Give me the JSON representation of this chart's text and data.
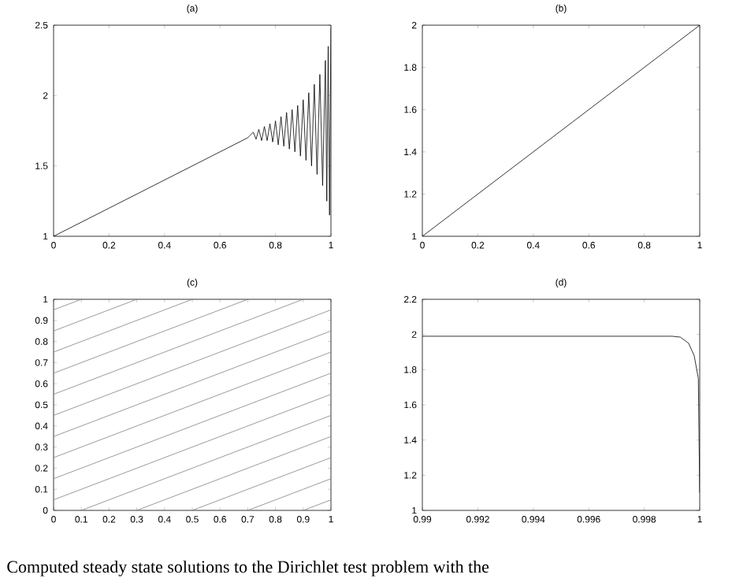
{
  "chart_data": [
    {
      "type": "line",
      "title": "(a)",
      "xlim": [
        0,
        1
      ],
      "ylim": [
        1,
        2.5
      ],
      "xticks": [
        0,
        0.2,
        0.4,
        0.6,
        0.8,
        1
      ],
      "yticks": [
        1,
        1.5,
        2,
        2.5
      ],
      "series": [
        {
          "color": "#000000",
          "x": [
            0,
            0.5,
            0.7,
            0.72,
            0.73,
            0.74,
            0.75,
            0.76,
            0.77,
            0.78,
            0.79,
            0.8,
            0.81,
            0.82,
            0.83,
            0.84,
            0.85,
            0.86,
            0.87,
            0.88,
            0.89,
            0.9,
            0.91,
            0.92,
            0.93,
            0.94,
            0.95,
            0.96,
            0.97,
            0.98,
            0.985,
            0.99,
            0.995,
            1
          ],
          "values": [
            1,
            1.5,
            1.7,
            1.74,
            1.69,
            1.76,
            1.68,
            1.78,
            1.68,
            1.8,
            1.67,
            1.82,
            1.65,
            1.85,
            1.64,
            1.88,
            1.62,
            1.9,
            1.6,
            1.93,
            1.57,
            1.97,
            1.54,
            2.02,
            1.5,
            2.08,
            1.44,
            2.15,
            1.36,
            2.25,
            1.25,
            2.35,
            1.15,
            2.48
          ]
        }
      ]
    },
    {
      "type": "line",
      "title": "(b)",
      "xlim": [
        0,
        1
      ],
      "ylim": [
        1,
        2
      ],
      "xticks": [
        0,
        0.2,
        0.4,
        0.6,
        0.8,
        1
      ],
      "yticks": [
        1,
        1.2,
        1.4,
        1.6,
        1.8,
        2
      ],
      "series": [
        {
          "color": "#000000",
          "x": [
            0,
            1
          ],
          "values": [
            1,
            2
          ]
        }
      ]
    },
    {
      "type": "line",
      "title": "(c)",
      "xlim": [
        0,
        1
      ],
      "ylim": [
        0,
        1
      ],
      "xticks": [
        0,
        0.1,
        0.2,
        0.3,
        0.4,
        0.5,
        0.6,
        0.7,
        0.8,
        0.9,
        1
      ],
      "yticks": [
        0,
        0.1,
        0.2,
        0.3,
        0.4,
        0.5,
        0.6,
        0.7,
        0.8,
        0.9,
        1
      ],
      "series": [
        {
          "color": "#808080",
          "x": [
            0.9,
            1
          ],
          "values": [
            0,
            0.05
          ]
        },
        {
          "color": "#808080",
          "x": [
            0.7,
            1
          ],
          "values": [
            0,
            0.15
          ]
        },
        {
          "color": "#808080",
          "x": [
            0.5,
            1
          ],
          "values": [
            0,
            0.25
          ]
        },
        {
          "color": "#808080",
          "x": [
            0.3,
            1
          ],
          "values": [
            0,
            0.35
          ]
        },
        {
          "color": "#808080",
          "x": [
            0.1,
            1
          ],
          "values": [
            0,
            0.45
          ]
        },
        {
          "color": "#808080",
          "x": [
            0,
            1
          ],
          "values": [
            0.05,
            0.55
          ]
        },
        {
          "color": "#808080",
          "x": [
            0,
            1
          ],
          "values": [
            0.15,
            0.65
          ]
        },
        {
          "color": "#808080",
          "x": [
            0,
            1
          ],
          "values": [
            0.25,
            0.75
          ]
        },
        {
          "color": "#808080",
          "x": [
            0,
            1
          ],
          "values": [
            0.35,
            0.85
          ]
        },
        {
          "color": "#808080",
          "x": [
            0,
            1
          ],
          "values": [
            0.45,
            0.95
          ]
        },
        {
          "color": "#808080",
          "x": [
            0,
            0.9
          ],
          "values": [
            0.55,
            1
          ]
        },
        {
          "color": "#808080",
          "x": [
            0,
            0.7
          ],
          "values": [
            0.65,
            1
          ]
        },
        {
          "color": "#808080",
          "x": [
            0,
            0.5
          ],
          "values": [
            0.75,
            1
          ]
        },
        {
          "color": "#808080",
          "x": [
            0,
            0.3
          ],
          "values": [
            0.85,
            1
          ]
        },
        {
          "color": "#808080",
          "x": [
            0,
            0.1
          ],
          "values": [
            0.95,
            1
          ]
        }
      ]
    },
    {
      "type": "line",
      "title": "(d)",
      "xlim": [
        0.99,
        1
      ],
      "ylim": [
        1,
        2.2
      ],
      "xticks": [
        0.99,
        0.992,
        0.994,
        0.996,
        0.998,
        1
      ],
      "yticks": [
        1,
        1.2,
        1.4,
        1.6,
        1.8,
        2,
        2.2
      ],
      "series": [
        {
          "color": "#000000",
          "x": [
            0.99,
            0.999,
            0.9993,
            0.9996,
            0.9998,
            0.99995,
            1
          ],
          "values": [
            1.99,
            1.99,
            1.985,
            1.95,
            1.88,
            1.75,
            1.1
          ]
        }
      ]
    },
    {
      "type": "other",
      "annotations": [
        "Computed steady state solutions to the Dirichlet test problem with the"
      ]
    }
  ]
}
